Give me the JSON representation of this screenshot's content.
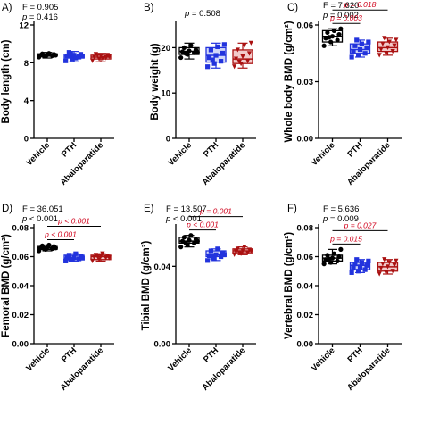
{
  "colors": {
    "vehicle": "#000000",
    "pth": "#2233dd",
    "abaloparatide": "#aa1111",
    "significance": "#d0021b"
  },
  "chart_data": [
    {
      "type": "box",
      "panel_label": "A)",
      "ylabel": "Body length (cm)",
      "categories": [
        "Vehicle",
        "PTH",
        "Abaloparatide"
      ],
      "ylim": [
        0,
        12
      ],
      "yticks": [
        "0",
        "4",
        "8",
        "12"
      ],
      "ytick_values": [
        0,
        4,
        8,
        12
      ],
      "stats": [
        "F = 0.905",
        "p = 0.416"
      ],
      "boxes": [
        {
          "name": "Vehicle",
          "min": 8.5,
          "q1": 8.7,
          "median": 8.8,
          "q3": 8.95,
          "max": 9.1,
          "points": [
            8.6,
            8.7,
            8.75,
            8.8,
            8.85,
            8.9,
            8.95,
            9.0,
            8.8,
            8.7
          ]
        },
        {
          "name": "PTH",
          "min": 8.1,
          "q1": 8.5,
          "median": 8.7,
          "q3": 8.9,
          "max": 9.2,
          "points": [
            8.2,
            8.4,
            8.6,
            8.7,
            8.8,
            8.9,
            9.1,
            8.5,
            8.7,
            8.95
          ]
        },
        {
          "name": "Abaloparatide",
          "min": 8.1,
          "q1": 8.4,
          "median": 8.6,
          "q3": 8.8,
          "max": 9.0,
          "points": [
            8.2,
            8.4,
            8.5,
            8.6,
            8.7,
            8.8,
            8.9,
            8.45,
            8.65,
            8.75
          ]
        }
      ],
      "comparisons": []
    },
    {
      "type": "box",
      "panel_label": "B)",
      "ylabel": "Body weight (g)",
      "categories": [
        "Vehicle",
        "PTH",
        "Abaloparatide"
      ],
      "ylim": [
        0,
        25
      ],
      "yticks": [
        "0",
        "10",
        "20"
      ],
      "ytick_values": [
        0,
        10,
        20
      ],
      "stats": [
        "p = 0.508"
      ],
      "boxes": [
        {
          "name": "Vehicle",
          "min": 17.5,
          "q1": 18.5,
          "median": 19.2,
          "q3": 20.0,
          "max": 21.0,
          "points": [
            17.8,
            18.5,
            18.9,
            19.1,
            19.3,
            19.6,
            20.0,
            20.5,
            19.0,
            18.7
          ]
        },
        {
          "name": "PTH",
          "min": 15.5,
          "q1": 16.8,
          "median": 18.3,
          "q3": 20.0,
          "max": 21.0,
          "points": [
            15.8,
            16.5,
            17.0,
            17.8,
            18.3,
            18.8,
            19.5,
            20.2,
            20.7,
            17.3
          ]
        },
        {
          "name": "Abaloparatide",
          "min": 15.5,
          "q1": 16.5,
          "median": 17.5,
          "q3": 19.5,
          "max": 21.0,
          "points": [
            15.8,
            16.4,
            17.0,
            17.5,
            18.0,
            18.7,
            19.5,
            20.5,
            21.0,
            16.8
          ]
        }
      ],
      "comparisons": []
    },
    {
      "type": "box",
      "panel_label": "C)",
      "ylabel": "Whole body BMD (g/cm²)",
      "categories": [
        "Vehicle",
        "PTH",
        "Abaloparatide"
      ],
      "ylim": [
        0,
        0.06
      ],
      "yticks": [
        "0.00",
        "0.03",
        "0.06"
      ],
      "ytick_values": [
        0.0,
        0.03,
        0.06
      ],
      "stats": [
        "F = 7.620",
        "p = 0.002"
      ],
      "boxes": [
        {
          "name": "Vehicle",
          "min": 0.049,
          "q1": 0.051,
          "median": 0.054,
          "q3": 0.057,
          "max": 0.058,
          "points": [
            0.049,
            0.051,
            0.052,
            0.053,
            0.054,
            0.055,
            0.056,
            0.057,
            0.058,
            0.0535
          ]
        },
        {
          "name": "PTH",
          "min": 0.043,
          "q1": 0.045,
          "median": 0.047,
          "q3": 0.05,
          "max": 0.052,
          "points": [
            0.043,
            0.044,
            0.045,
            0.046,
            0.047,
            0.048,
            0.049,
            0.05,
            0.051,
            0.052
          ]
        },
        {
          "name": "Abaloparatide",
          "min": 0.044,
          "q1": 0.046,
          "median": 0.048,
          "q3": 0.051,
          "max": 0.053,
          "points": [
            0.044,
            0.045,
            0.046,
            0.047,
            0.048,
            0.049,
            0.05,
            0.051,
            0.052,
            0.053
          ]
        }
      ],
      "comparisons": [
        {
          "from": 0,
          "to": 2,
          "label": "p = 0.018",
          "level": 2
        },
        {
          "from": 0,
          "to": 1,
          "label": "p = 0.003",
          "level": 1
        }
      ]
    },
    {
      "type": "box",
      "panel_label": "D)",
      "ylabel": "Femoral BMD (g/cm²)",
      "categories": [
        "Vehicle",
        "PTH",
        "Abaloparatide"
      ],
      "ylim": [
        0,
        0.08
      ],
      "yticks": [
        "0.00",
        "0.02",
        "0.04",
        "0.06",
        "0.08"
      ],
      "ytick_values": [
        0.0,
        0.02,
        0.04,
        0.06,
        0.08
      ],
      "stats": [
        "F = 36.051",
        "p < 0.001"
      ],
      "boxes": [
        {
          "name": "Vehicle",
          "min": 0.064,
          "q1": 0.065,
          "median": 0.066,
          "q3": 0.067,
          "max": 0.068,
          "points": [
            0.064,
            0.065,
            0.0655,
            0.066,
            0.0665,
            0.067,
            0.0675,
            0.068,
            0.066,
            0.0655
          ]
        },
        {
          "name": "PTH",
          "min": 0.057,
          "q1": 0.058,
          "median": 0.059,
          "q3": 0.061,
          "max": 0.062,
          "points": [
            0.057,
            0.058,
            0.0585,
            0.059,
            0.0595,
            0.06,
            0.061,
            0.062,
            0.059,
            0.058
          ]
        },
        {
          "name": "Abaloparatide",
          "min": 0.057,
          "q1": 0.058,
          "median": 0.06,
          "q3": 0.061,
          "max": 0.062,
          "points": [
            0.057,
            0.058,
            0.059,
            0.0595,
            0.06,
            0.0605,
            0.061,
            0.062,
            0.059,
            0.06
          ]
        }
      ],
      "comparisons": [
        {
          "from": 0,
          "to": 2,
          "label": "p < 0.001",
          "level": 2
        },
        {
          "from": 0,
          "to": 1,
          "label": "p < 0.001",
          "level": 1
        }
      ]
    },
    {
      "type": "box",
      "panel_label": "E)",
      "ylabel": "Tibial BMD (g/cm²)",
      "categories": [
        "Vehicle",
        "PTH",
        "Abaloparatide"
      ],
      "ylim": [
        0,
        0.06
      ],
      "yticks": [
        "0.00",
        "0.04"
      ],
      "ytick_values": [
        0.0,
        0.04
      ],
      "stats": [
        "F = 13.507",
        "p < 0.001"
      ],
      "boxes": [
        {
          "name": "Vehicle",
          "min": 0.05,
          "q1": 0.052,
          "median": 0.053,
          "q3": 0.055,
          "max": 0.056,
          "points": [
            0.05,
            0.051,
            0.052,
            0.053,
            0.0535,
            0.054,
            0.055,
            0.056,
            0.053,
            0.052
          ]
        },
        {
          "name": "PTH",
          "min": 0.043,
          "q1": 0.045,
          "median": 0.046,
          "q3": 0.048,
          "max": 0.049,
          "points": [
            0.043,
            0.044,
            0.045,
            0.0455,
            0.046,
            0.047,
            0.048,
            0.049,
            0.046,
            0.0445
          ]
        },
        {
          "name": "Abaloparatide",
          "min": 0.046,
          "q1": 0.047,
          "median": 0.048,
          "q3": 0.049,
          "max": 0.05,
          "points": [
            0.046,
            0.0465,
            0.047,
            0.0475,
            0.048,
            0.0485,
            0.049,
            0.05,
            0.048,
            0.047
          ]
        }
      ],
      "comparisons": [
        {
          "from": 0,
          "to": 2,
          "label": "p = 0.001",
          "level": 2
        },
        {
          "from": 0,
          "to": 1,
          "label": "p < 0.001",
          "level": 1
        }
      ]
    },
    {
      "type": "box",
      "panel_label": "F)",
      "ylabel": "Vertebral BMD (g/cm²)",
      "categories": [
        "Vehicle",
        "PTH",
        "Abaloparatide"
      ],
      "ylim": [
        0,
        0.08
      ],
      "yticks": [
        "0.00",
        "0.02",
        "0.04",
        "0.06",
        "0.08"
      ],
      "ytick_values": [
        0.0,
        0.02,
        0.04,
        0.06,
        0.08
      ],
      "stats": [
        "F = 5.636",
        "p = 0.009"
      ],
      "boxes": [
        {
          "name": "Vehicle",
          "min": 0.055,
          "q1": 0.057,
          "median": 0.059,
          "q3": 0.061,
          "max": 0.065,
          "points": [
            0.055,
            0.056,
            0.057,
            0.058,
            0.059,
            0.06,
            0.061,
            0.062,
            0.065,
            0.0585
          ]
        },
        {
          "name": "PTH",
          "min": 0.049,
          "q1": 0.051,
          "median": 0.054,
          "q3": 0.056,
          "max": 0.058,
          "points": [
            0.049,
            0.05,
            0.051,
            0.052,
            0.053,
            0.054,
            0.055,
            0.056,
            0.057,
            0.058
          ]
        },
        {
          "name": "Abaloparatide",
          "min": 0.048,
          "q1": 0.05,
          "median": 0.053,
          "q3": 0.056,
          "max": 0.058,
          "points": [
            0.048,
            0.049,
            0.05,
            0.052,
            0.053,
            0.054,
            0.055,
            0.056,
            0.057,
            0.058
          ]
        }
      ],
      "comparisons": [
        {
          "from": 0,
          "to": 2,
          "label": "p = 0.027",
          "level": 2
        },
        {
          "from": 0,
          "to": 1,
          "label": "p = 0.015",
          "level": 1
        }
      ]
    }
  ]
}
